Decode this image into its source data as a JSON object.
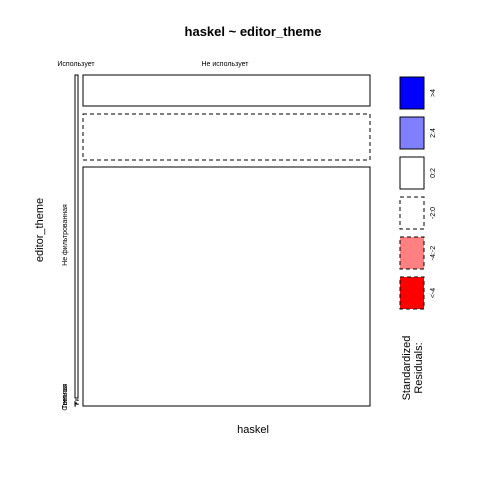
{
  "chart_data": {
    "type": "mosaic",
    "title": "haskel ~ editor_theme",
    "xlabel": "haskel",
    "ylabel": "editor_theme",
    "x_categories": [
      "Использует",
      "Не использует"
    ],
    "y_categories": [
      "Не фильтрованная",
      "Темная",
      "Светлая"
    ],
    "cells": [
      {
        "x": "Использует",
        "y": "Темная",
        "proportion_x": 0.004,
        "proportion_y": 0.007,
        "residual_class": "-2:0"
      },
      {
        "x": "Использует",
        "y": "Светлая",
        "proportion_x": 0.004,
        "proportion_y": 0.007,
        "residual_class": "-2:0"
      },
      {
        "x": "Использует",
        "y": "Не фильтрованная",
        "proportion_x": 0.004,
        "proportion_y": 0.986,
        "residual_class": "0:2"
      },
      {
        "x": "Не использует",
        "y": "Темная",
        "proportion_x": 0.996,
        "proportion_y": 0.13,
        "residual_class": "-2:0"
      },
      {
        "x": "Не использует",
        "y": "Светлая",
        "proportion_x": 0.996,
        "proportion_y": 0.16,
        "residual_class": "0:2"
      },
      {
        "x": "Не использует",
        "y": "Не фильтрованная",
        "proportion_x": 0.996,
        "proportion_y": 0.71,
        "residual_class": "0:2"
      }
    ],
    "legend": {
      "title_lines": [
        "Standardized",
        "Residuals:"
      ],
      "position": "right",
      "items": [
        {
          "label": ">4",
          "color": "#0000ff",
          "dashed": false
        },
        {
          "label": "2:4",
          "color": "#8080ff",
          "dashed": false
        },
        {
          "label": "0:2",
          "color": "#ffffff",
          "dashed": false
        },
        {
          "label": "-2:0",
          "color": "#ffffff",
          "dashed": true
        },
        {
          "label": "-4:-2",
          "color": "#ff8080",
          "dashed": true
        },
        {
          "label": "<-4",
          "color": "#ff0000",
          "dashed": true
        }
      ]
    }
  }
}
